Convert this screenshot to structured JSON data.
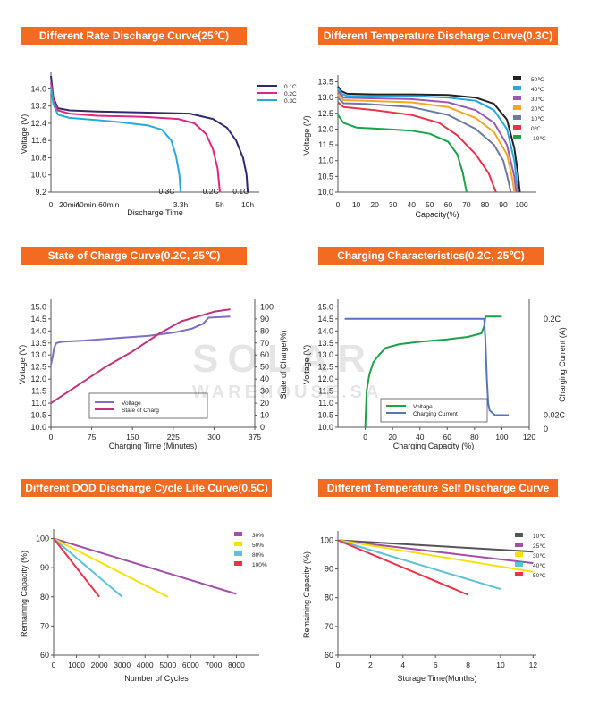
{
  "watermark": {
    "line1": "SOLAR",
    "line2": "WAREHOUSE.SA"
  },
  "chart_data": [
    {
      "type": "line",
      "title": "Different Rate Discharge Curve(25℃)",
      "xlabel": "Discharge Time",
      "ylabel": "Voltage (V)",
      "x_tick_labels": [
        "0",
        "20min",
        "40min",
        "60min",
        "3.3h",
        "5h",
        "10h"
      ],
      "x_tick_values": [
        0,
        8,
        15,
        25,
        56,
        73,
        85
      ],
      "y_ticks": [
        9.2,
        10.0,
        10.8,
        11.6,
        12.4,
        13.2,
        14.0
      ],
      "ylim": [
        9.2,
        14.6
      ],
      "xlim": [
        0,
        90
      ],
      "legend": "top-right",
      "annotations": [
        {
          "text": "0.3C",
          "x": 50,
          "y": 9.2
        },
        {
          "text": "0.2C",
          "x": 69,
          "y": 9.2
        },
        {
          "text": "0.1C",
          "x": 82,
          "y": 9.2
        }
      ],
      "series": [
        {
          "name": "0.1C",
          "color": "#2e2a6e",
          "points": [
            [
              0,
              14.6
            ],
            [
              1,
              13.6
            ],
            [
              3,
              13.1
            ],
            [
              8,
              13.0
            ],
            [
              20,
              12.95
            ],
            [
              40,
              12.9
            ],
            [
              60,
              12.85
            ],
            [
              70,
              12.6
            ],
            [
              76,
              12.2
            ],
            [
              80,
              11.6
            ],
            [
              83,
              10.8
            ],
            [
              84.5,
              10.0
            ],
            [
              85,
              9.2
            ]
          ]
        },
        {
          "name": "0.2C",
          "color": "#e0267f",
          "points": [
            [
              0,
              14.3
            ],
            [
              1,
              13.5
            ],
            [
              3,
              13.0
            ],
            [
              8,
              12.85
            ],
            [
              20,
              12.75
            ],
            [
              40,
              12.7
            ],
            [
              55,
              12.6
            ],
            [
              62,
              12.4
            ],
            [
              67,
              11.9
            ],
            [
              70,
              11.2
            ],
            [
              72,
              10.3
            ],
            [
              73,
              9.2
            ]
          ]
        },
        {
          "name": "0.3C",
          "color": "#29a8df",
          "points": [
            [
              0,
              14.1
            ],
            [
              1,
              13.3
            ],
            [
              3,
              12.8
            ],
            [
              8,
              12.65
            ],
            [
              20,
              12.55
            ],
            [
              30,
              12.45
            ],
            [
              42,
              12.3
            ],
            [
              48,
              12.1
            ],
            [
              52,
              11.6
            ],
            [
              54,
              10.9
            ],
            [
              55.5,
              10.0
            ],
            [
              56,
              9.2
            ]
          ]
        }
      ]
    },
    {
      "type": "line",
      "title": "Different Temperature Discharge Curve(0.3C)",
      "xlabel": "Capacity(%)",
      "ylabel": "Voltage (V)",
      "x_tick_labels": [
        "0",
        "10",
        "20",
        "30",
        "40",
        "50",
        "60",
        "70",
        "80",
        "90",
        "100"
      ],
      "x_tick_values": [
        0,
        10,
        20,
        30,
        40,
        50,
        60,
        70,
        80,
        90,
        100
      ],
      "y_ticks": [
        10.0,
        10.5,
        11.0,
        11.5,
        12.0,
        12.5,
        13.0,
        13.5
      ],
      "ylim": [
        10.0,
        13.6
      ],
      "xlim": [
        0,
        108
      ],
      "legend": "top-right",
      "series": [
        {
          "name": "50℃",
          "color": "#222222",
          "points": [
            [
              0,
              13.35
            ],
            [
              2,
              13.2
            ],
            [
              5,
              13.12
            ],
            [
              20,
              13.1
            ],
            [
              40,
              13.1
            ],
            [
              60,
              13.08
            ],
            [
              75,
              13.0
            ],
            [
              85,
              12.8
            ],
            [
              92,
              12.3
            ],
            [
              96,
              11.4
            ],
            [
              98,
              10.6
            ],
            [
              99,
              10.0
            ]
          ]
        },
        {
          "name": "40℃",
          "color": "#29a8df",
          "points": [
            [
              0,
              13.3
            ],
            [
              2,
              13.12
            ],
            [
              5,
              13.05
            ],
            [
              20,
              13.05
            ],
            [
              40,
              13.05
            ],
            [
              60,
              13.0
            ],
            [
              75,
              12.9
            ],
            [
              85,
              12.6
            ],
            [
              92,
              12.0
            ],
            [
              96,
              11.0
            ],
            [
              98,
              10.0
            ]
          ]
        },
        {
          "name": "30℃",
          "color": "#9b59b6",
          "points": [
            [
              0,
              13.2
            ],
            [
              3,
              13.0
            ],
            [
              15,
              12.98
            ],
            [
              40,
              12.95
            ],
            [
              60,
              12.85
            ],
            [
              75,
              12.6
            ],
            [
              85,
              12.2
            ],
            [
              92,
              11.5
            ],
            [
              96,
              10.5
            ],
            [
              97,
              10.0
            ]
          ]
        },
        {
          "name": "20℃",
          "color": "#f5a623",
          "points": [
            [
              0,
              13.1
            ],
            [
              3,
              12.92
            ],
            [
              15,
              12.9
            ],
            [
              40,
              12.85
            ],
            [
              60,
              12.7
            ],
            [
              75,
              12.35
            ],
            [
              85,
              11.9
            ],
            [
              92,
              11.2
            ],
            [
              95,
              10.4
            ],
            [
              96,
              10.0
            ]
          ]
        },
        {
          "name": "10℃",
          "color": "#6c7aa3",
          "points": [
            [
              0,
              13.0
            ],
            [
              3,
              12.82
            ],
            [
              15,
              12.8
            ],
            [
              40,
              12.7
            ],
            [
              60,
              12.45
            ],
            [
              75,
              12.0
            ],
            [
              85,
              11.5
            ],
            [
              90,
              11.0
            ],
            [
              93,
              10.3
            ],
            [
              94,
              10.0
            ]
          ]
        },
        {
          "name": "0℃",
          "color": "#e8334a",
          "points": [
            [
              0,
              12.85
            ],
            [
              3,
              12.7
            ],
            [
              20,
              12.6
            ],
            [
              40,
              12.45
            ],
            [
              55,
              12.2
            ],
            [
              65,
              11.8
            ],
            [
              75,
              11.2
            ],
            [
              82,
              10.6
            ],
            [
              86,
              10.0
            ]
          ]
        },
        {
          "name": "-10℃",
          "color": "#1aa34a",
          "points": [
            [
              0,
              12.45
            ],
            [
              3,
              12.2
            ],
            [
              10,
              12.05
            ],
            [
              25,
              12.0
            ],
            [
              40,
              11.95
            ],
            [
              50,
              11.85
            ],
            [
              60,
              11.6
            ],
            [
              65,
              11.2
            ],
            [
              68,
              10.6
            ],
            [
              70,
              10.0
            ]
          ]
        }
      ]
    },
    {
      "type": "line",
      "title": "State of Charge Curve(0.2C, 25℃)",
      "xlabel": "Charging Time (Minutes)",
      "ylabel": "Voltage (V)",
      "y2label": "State of Charge(%)",
      "x_ticks": [
        0,
        75,
        150,
        225,
        300,
        375
      ],
      "y_ticks": [
        10.0,
        10.5,
        11.0,
        11.5,
        12.0,
        12.5,
        13.0,
        13.5,
        14.0,
        14.5,
        15.0
      ],
      "y2_ticks": [
        0,
        10,
        20,
        30,
        40,
        50,
        60,
        70,
        80,
        90,
        100
      ],
      "ylim": [
        10.0,
        15.2
      ],
      "y2lim": [
        0,
        104
      ],
      "xlim": [
        0,
        375
      ],
      "legend": "bottom-left",
      "series": [
        {
          "name": "Voltage",
          "axis": "left",
          "color": "#7b6fc4",
          "points": [
            [
              0,
              12.6
            ],
            [
              3,
              12.9
            ],
            [
              6,
              13.3
            ],
            [
              10,
              13.5
            ],
            [
              20,
              13.55
            ],
            [
              60,
              13.6
            ],
            [
              120,
              13.7
            ],
            [
              180,
              13.8
            ],
            [
              230,
              13.95
            ],
            [
              260,
              14.1
            ],
            [
              280,
              14.3
            ],
            [
              290,
              14.55
            ],
            [
              330,
              14.6
            ]
          ]
        },
        {
          "name": "State of Charg",
          "axis": "right",
          "color": "#c2317a",
          "points": [
            [
              0,
              20
            ],
            [
              50,
              35
            ],
            [
              100,
              50
            ],
            [
              150,
              63
            ],
            [
              200,
              78
            ],
            [
              240,
              88
            ],
            [
              270,
              92
            ],
            [
              300,
              96
            ],
            [
              330,
              98
            ]
          ]
        }
      ]
    },
    {
      "type": "line",
      "title": "Charging Characteristics(0.2C, 25℃)",
      "xlabel": "Charging Capacity (%)",
      "ylabel": "Voltage (V)",
      "y2label": "Charging Current (A)",
      "x_ticks": [
        0,
        20,
        40,
        60,
        80,
        100,
        120
      ],
      "y_ticks": [
        10.0,
        10.5,
        11.0,
        11.5,
        12.0,
        12.5,
        13.0,
        13.5,
        14.0,
        14.5,
        15.0
      ],
      "y2_tick_labels": [
        "0.2C",
        "0.02C",
        "0"
      ],
      "ylim": [
        10.0,
        15.2
      ],
      "xlim": [
        -20,
        120
      ],
      "legend": "bottom-center",
      "series": [
        {
          "name": "Voltage",
          "axis": "left",
          "color": "#1aa34a",
          "points": [
            [
              0,
              10.0
            ],
            [
              1,
              11.5
            ],
            [
              3,
              12.2
            ],
            [
              6,
              12.7
            ],
            [
              10,
              13.0
            ],
            [
              15,
              13.3
            ],
            [
              25,
              13.45
            ],
            [
              40,
              13.55
            ],
            [
              60,
              13.65
            ],
            [
              75,
              13.75
            ],
            [
              85,
              13.9
            ],
            [
              87,
              14.2
            ],
            [
              88,
              14.6
            ],
            [
              100,
              14.6
            ]
          ]
        },
        {
          "name": "Charging Current",
          "axis": "right",
          "color": "#5576b8",
          "points": [
            [
              -15,
              14.5
            ],
            [
              87,
              14.5
            ],
            [
              88,
              13.5
            ],
            [
              89,
              12.0
            ],
            [
              90,
              11.0
            ],
            [
              91,
              10.7
            ],
            [
              95,
              10.5
            ],
            [
              105,
              10.5
            ]
          ]
        }
      ]
    },
    {
      "type": "line",
      "title": "Different DOD Discharge Cycle Life Curve(0.5C)",
      "xlabel": "Number of Cycles",
      "ylabel": "Remaining Capacity (%)",
      "x_ticks": [
        0,
        1000,
        2000,
        3000,
        4000,
        5000,
        6000,
        7000,
        8000
      ],
      "y_ticks": [
        60,
        70,
        80,
        90,
        100
      ],
      "ylim": [
        60,
        102
      ],
      "xlim": [
        0,
        9000
      ],
      "legend": "top-right",
      "series": [
        {
          "name": "30%",
          "color": "#a24fa8",
          "points": [
            [
              0,
              100
            ],
            [
              8000,
              81
            ]
          ]
        },
        {
          "name": "50%",
          "color": "#f2e20a",
          "points": [
            [
              0,
              100
            ],
            [
              5000,
              80
            ]
          ]
        },
        {
          "name": "80%",
          "color": "#5fc0d8",
          "points": [
            [
              0,
              100
            ],
            [
              3000,
              80
            ]
          ]
        },
        {
          "name": "100%",
          "color": "#e8334a",
          "points": [
            [
              0,
              100
            ],
            [
              2000,
              80
            ]
          ]
        }
      ]
    },
    {
      "type": "line",
      "title": "Different Temperature Self Discharge Curve",
      "xlabel": "Storage Time(Months)",
      "ylabel": "Remaining Capacity (%)",
      "x_ticks": [
        0,
        2,
        4,
        6,
        8,
        10,
        12
      ],
      "y_ticks": [
        60,
        70,
        80,
        90,
        100
      ],
      "ylim": [
        60,
        102
      ],
      "xlim": [
        0,
        12.2
      ],
      "legend": "top-right",
      "series": [
        {
          "name": "10℃",
          "color": "#555555",
          "points": [
            [
              0,
              100
            ],
            [
              12,
              96
            ]
          ]
        },
        {
          "name": "25℃",
          "color": "#a24fa8",
          "points": [
            [
              0,
              100
            ],
            [
              12,
              92
            ]
          ]
        },
        {
          "name": "30℃",
          "color": "#f2e20a",
          "points": [
            [
              0,
              100
            ],
            [
              12,
              89
            ]
          ]
        },
        {
          "name": "40℃",
          "color": "#5fc0d8",
          "points": [
            [
              0,
              100
            ],
            [
              10,
              83
            ]
          ]
        },
        {
          "name": "50℃",
          "color": "#e8334a",
          "points": [
            [
              0,
              100
            ],
            [
              8,
              81
            ]
          ]
        }
      ]
    }
  ]
}
